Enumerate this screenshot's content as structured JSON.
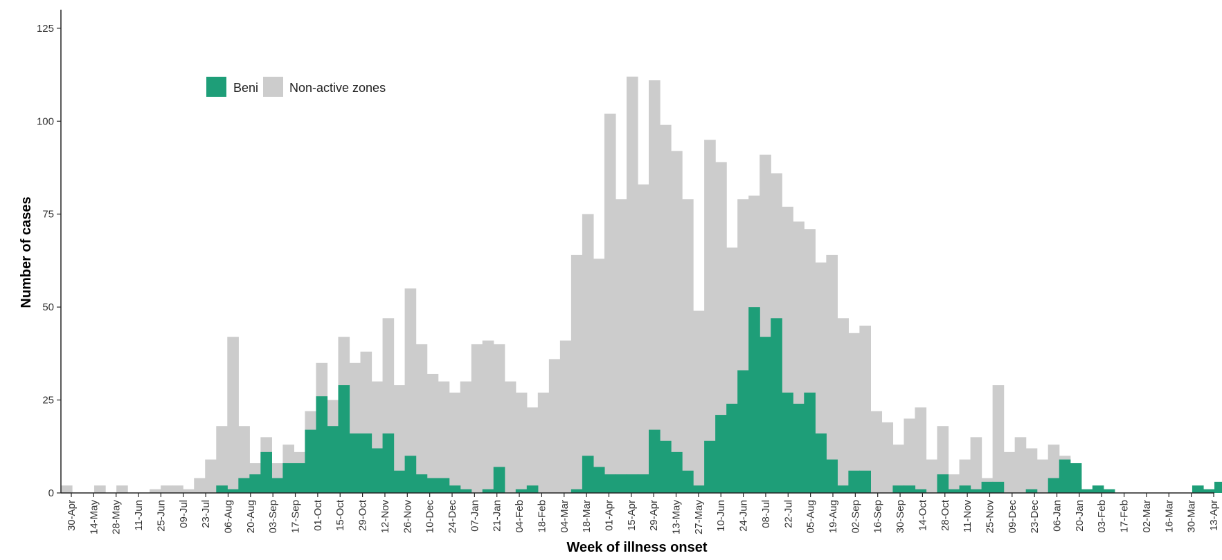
{
  "chart_data": {
    "type": "bar",
    "stacking": "overlay",
    "xlabel": "Week of illness onset",
    "ylabel": "Number of cases",
    "ylim": [
      0,
      130
    ],
    "yticks": [
      0,
      25,
      50,
      75,
      100,
      125
    ],
    "legend_position": "top-left",
    "grid": false,
    "tick_labels": [
      "30-Apr",
      "14-May",
      "28-May",
      "11-Jun",
      "25-Jun",
      "09-Jul",
      "23-Jul",
      "06-Aug",
      "20-Aug",
      "03-Sep",
      "17-Sep",
      "01-Oct",
      "15-Oct",
      "29-Oct",
      "12-Nov",
      "26-Nov",
      "10-Dec",
      "24-Dec",
      "07-Jan",
      "21-Jan",
      "04-Feb",
      "18-Feb",
      "04-Mar",
      "18-Mar",
      "01-Apr",
      "15-Apr",
      "29-Apr",
      "13-May",
      "27-May",
      "10-Jun",
      "24-Jun",
      "08-Jul",
      "22-Jul",
      "05-Aug",
      "19-Aug",
      "02-Sep",
      "16-Sep",
      "30-Sep",
      "14-Oct",
      "28-Oct",
      "11-Nov",
      "25-Nov",
      "09-Dec",
      "23-Dec",
      "06-Jan",
      "20-Jan",
      "03-Feb",
      "17-Feb",
      "02-Mar",
      "16-Mar",
      "30-Mar",
      "13-Apr"
    ],
    "series": [
      {
        "name": "Non-active zones",
        "color": "#cccccc",
        "values": [
          2,
          0,
          0,
          2,
          0,
          2,
          0,
          0,
          1,
          2,
          2,
          1,
          4,
          9,
          18,
          42,
          18,
          8,
          15,
          8,
          13,
          11,
          22,
          35,
          25,
          42,
          35,
          38,
          30,
          47,
          29,
          55,
          40,
          32,
          30,
          27,
          30,
          40,
          41,
          40,
          30,
          27,
          23,
          27,
          36,
          41,
          64,
          75,
          63,
          102,
          79,
          112,
          83,
          111,
          99,
          92,
          79,
          49,
          95,
          89,
          66,
          79,
          80,
          91,
          86,
          77,
          73,
          71,
          62,
          64,
          47,
          43,
          45,
          22,
          19,
          13,
          20,
          23,
          9,
          18,
          5,
          9,
          15,
          4,
          29,
          11,
          15,
          12,
          9,
          13,
          10,
          2,
          0,
          0,
          0,
          0,
          0,
          0,
          0,
          0,
          0,
          0,
          0,
          0
        ]
      },
      {
        "name": "Beni",
        "color": "#1e9e78",
        "values": [
          0,
          0,
          0,
          0,
          0,
          0,
          0,
          0,
          0,
          0,
          0,
          0,
          0,
          0,
          2,
          1,
          4,
          5,
          11,
          4,
          8,
          8,
          17,
          26,
          18,
          29,
          16,
          16,
          12,
          16,
          6,
          10,
          5,
          4,
          4,
          2,
          1,
          0,
          1,
          7,
          0,
          1,
          2,
          0,
          0,
          0,
          1,
          10,
          7,
          5,
          5,
          5,
          5,
          17,
          14,
          11,
          6,
          2,
          14,
          21,
          24,
          33,
          50,
          42,
          47,
          27,
          24,
          27,
          16,
          9,
          2,
          6,
          6,
          0,
          0,
          2,
          2,
          1,
          0,
          5,
          1,
          2,
          1,
          3,
          3,
          0,
          0,
          1,
          0,
          4,
          9,
          8,
          1,
          2,
          1,
          0,
          0,
          0,
          0,
          0,
          0,
          0,
          2,
          1,
          3
        ]
      }
    ]
  }
}
